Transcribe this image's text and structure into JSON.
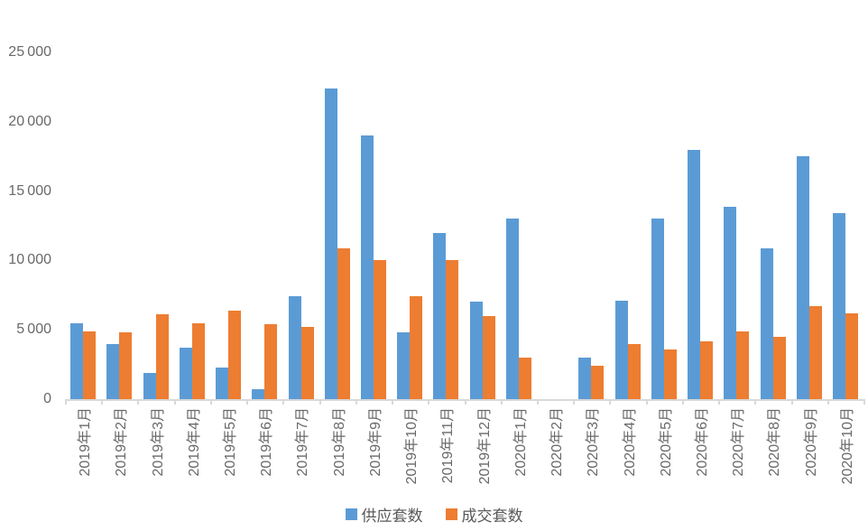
{
  "chart_data": {
    "type": "bar",
    "title": "",
    "xlabel": "",
    "ylabel": "",
    "grid": false,
    "legend_position": "bottom-center",
    "bar_orientation": "vertical",
    "ylim": [
      0,
      25000
    ],
    "yticks": [
      0,
      5000,
      10000,
      15000,
      20000,
      25000
    ],
    "ytick_labels": [
      "0",
      "5 000",
      "10 000",
      "15 000",
      "20 000",
      "25 000"
    ],
    "categories": [
      "2019年1月",
      "2019年2月",
      "2019年3月",
      "2019年4月",
      "2019年5月",
      "2019年6月",
      "2019年7月",
      "2019年8月",
      "2019年9月",
      "2019年10月",
      "2019年11月",
      "2019年12月",
      "2020年1月",
      "2020年2月",
      "2020年3月",
      "2020年4月",
      "2020年5月",
      "2020年6月",
      "2020年7月",
      "2020年8月",
      "2020年9月",
      "2020年10月"
    ],
    "series": [
      {
        "key": "supply",
        "name": "供应套数",
        "color": "#5B9BD5",
        "values": [
          5500,
          4000,
          1900,
          3700,
          2300,
          700,
          7400,
          22400,
          19000,
          4800,
          12000,
          7000,
          13000,
          0,
          3000,
          7100,
          13000,
          18000,
          13900,
          10900,
          17500,
          13400
        ]
      },
      {
        "key": "deals",
        "name": "成交套数",
        "color": "#ED7D31",
        "values": [
          4900,
          4800,
          6100,
          5500,
          6400,
          5400,
          5200,
          10900,
          10000,
          7400,
          10000,
          6000,
          3000,
          0,
          2400,
          4000,
          3600,
          4200,
          4900,
          4500,
          6700,
          6200
        ]
      }
    ]
  },
  "colors": {
    "background": "#FFFFFF",
    "axis_line": "#D9D9D9",
    "tick": "#D9D9D9",
    "axis_label_text": "#696969",
    "legend_text": "#595959",
    "series_supply": "#5B9BD5",
    "series_deals": "#ED7D31"
  },
  "legend": {
    "items": [
      {
        "label": "供应套数",
        "swatch_color": "#5B9BD5"
      },
      {
        "label": "成交套数",
        "swatch_color": "#ED7D31"
      }
    ]
  }
}
